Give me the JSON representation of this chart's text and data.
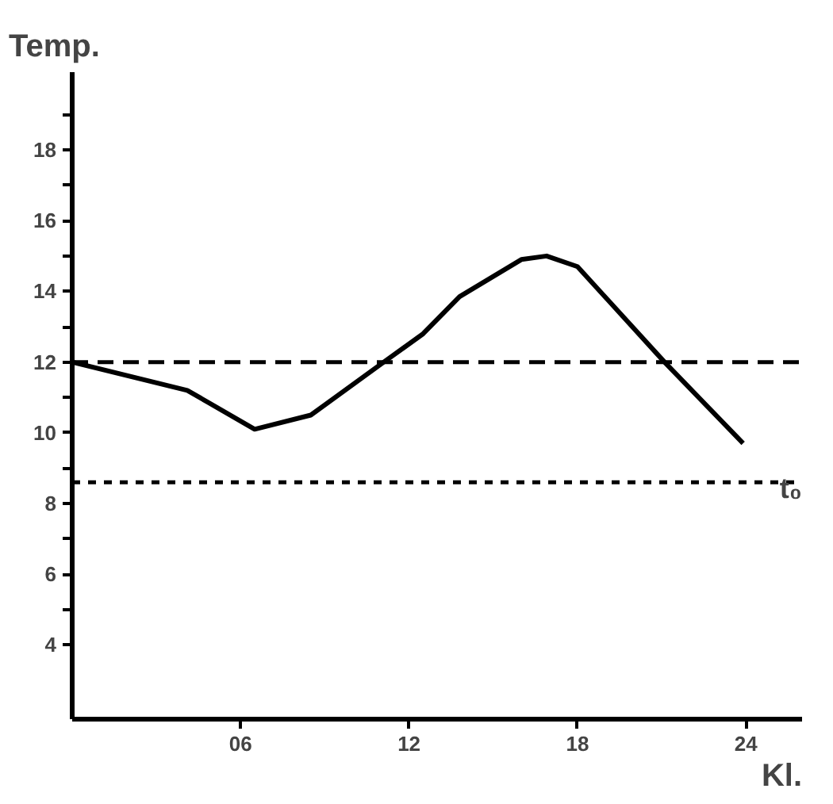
{
  "chart_data": {
    "type": "line",
    "xlabel": "Kl.",
    "ylabel": "Temp.",
    "x": [
      0,
      4.1,
      6.5,
      8.5,
      11.1,
      12.5,
      13.8,
      16.0,
      16.9,
      18.0,
      21.1,
      23.9
    ],
    "series": [
      {
        "color": "#000000",
        "values": [
          12,
          11.2,
          10.1,
          10.5,
          12,
          12.8,
          13.85,
          14.9,
          15,
          14.7,
          12,
          9.7
        ]
      }
    ],
    "xlim": [
      0,
      26
    ],
    "ylim": [
      1.9,
      20.2
    ],
    "xticks": [
      {
        "value": 6,
        "label": "06"
      },
      12,
      18,
      24
    ],
    "yticks": [
      4,
      {
        "value": 5,
        "label": null
      },
      6,
      {
        "value": 7,
        "label": null
      },
      8,
      {
        "value": 9,
        "label": null
      },
      10,
      {
        "value": 11,
        "label": null
      },
      12,
      {
        "value": 13,
        "label": null
      },
      14,
      {
        "value": 15,
        "label": null
      },
      16,
      {
        "value": 17,
        "label": null
      },
      18,
      {
        "value": 19,
        "label": null
      }
    ],
    "ref_lines": [
      {
        "axis": "y",
        "value": 12,
        "line_style": "dashed"
      },
      {
        "axis": "y",
        "value": 8.6,
        "label": "t₀",
        "line_style": "dotted"
      }
    ],
    "grid": false,
    "marker": "none",
    "line_style": "solid"
  }
}
